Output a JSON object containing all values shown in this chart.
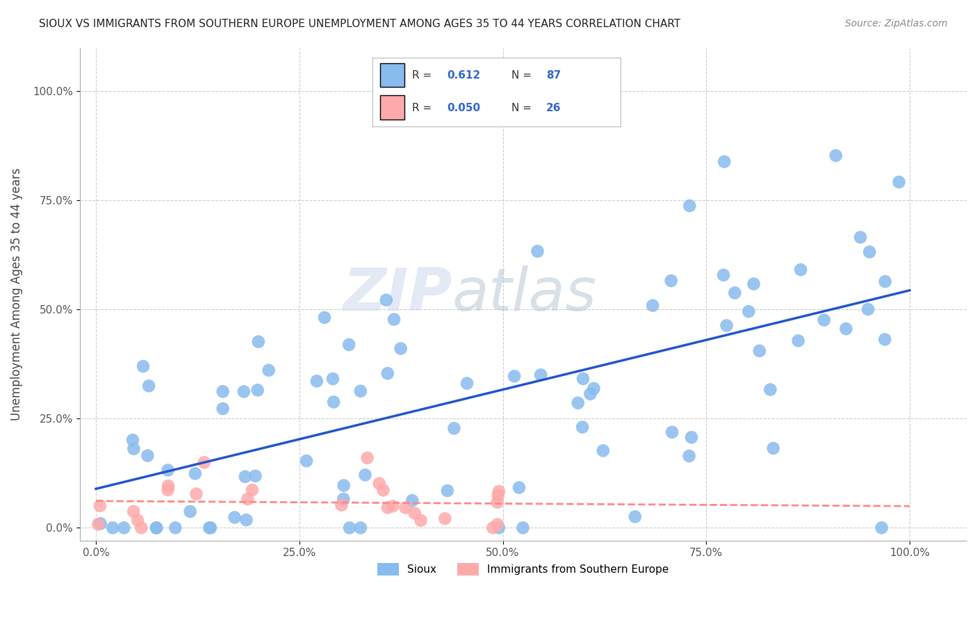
{
  "title": "SIOUX VS IMMIGRANTS FROM SOUTHERN EUROPE UNEMPLOYMENT AMONG AGES 35 TO 44 YEARS CORRELATION CHART",
  "source": "Source: ZipAtlas.com",
  "ylabel": "Unemployment Among Ages 35 to 44 years",
  "x_tick_labels": [
    "0.0%",
    "25.0%",
    "50.0%",
    "75.0%",
    "100.0%"
  ],
  "y_tick_labels": [
    "0.0%",
    "25.0%",
    "50.0%",
    "75.0%",
    "100.0%"
  ],
  "xlim": [
    -2,
    107
  ],
  "ylim": [
    -3,
    110
  ],
  "sioux_R": 0.612,
  "sioux_N": 87,
  "immigrants_R": 0.05,
  "immigrants_N": 26,
  "sioux_color": "#88bbee",
  "immigrants_color": "#ffaaaa",
  "sioux_line_color": "#2255cc",
  "immigrants_line_color": "#ff8888",
  "background_color": "#ffffff",
  "legend_label_sioux": "Sioux",
  "legend_label_immigrants": "Immigrants from Southern Europe",
  "watermark_zip": "ZIP",
  "watermark_atlas": "atlas"
}
